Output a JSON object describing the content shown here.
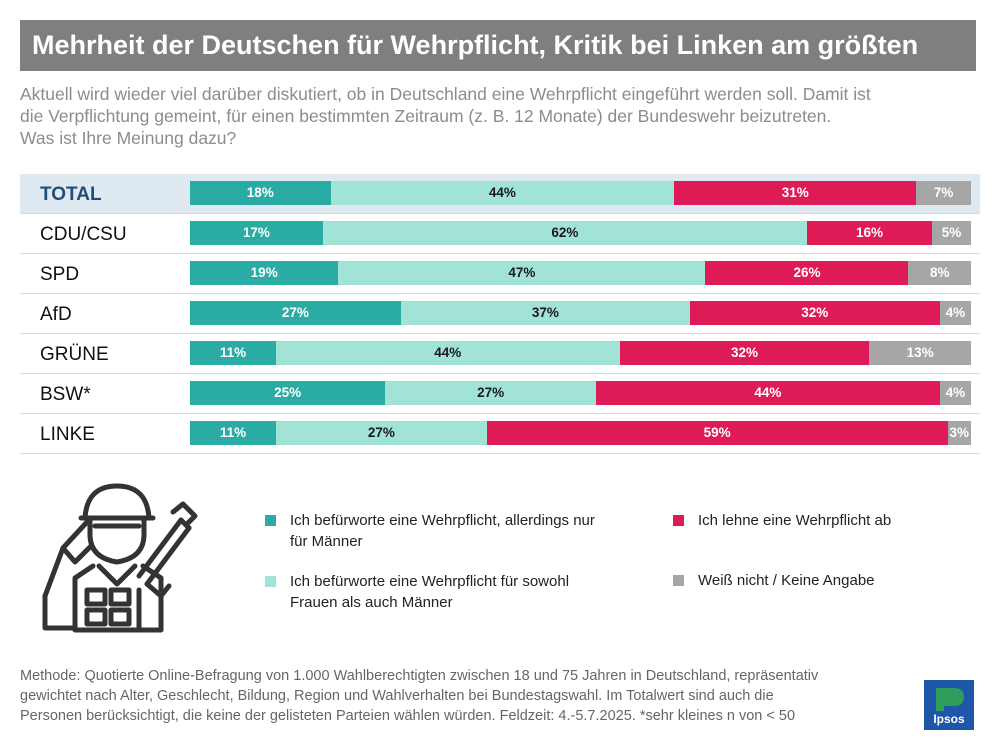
{
  "title": "Mehrheit der Deutschen für Wehrpflicht, Kritik bei Linken am größten",
  "subtitle_lines": [
    "Aktuell wird wieder viel darüber diskutiert, ob in Deutschland eine Wehrpflicht eingeführt werden soll. Damit ist",
    "die Verpflichtung gemeint, für einen bestimmten Zeitraum (z. B. 12 Monate) der Bundeswehr beizutreten.",
    "Was ist Ihre Meinung dazu?"
  ],
  "colors": {
    "men_only": "#2aaca4",
    "both": "#a1e3d7",
    "reject": "#df1b57",
    "unknown": "#a6a6a6",
    "title_bg": "#7f7f7f",
    "highlight_bg": "#dfe9f1",
    "logo_bg": "#1f56a8"
  },
  "chart_data": {
    "type": "bar",
    "orientation": "horizontal",
    "stacked": true,
    "percent_stacked": true,
    "categories": [
      "TOTAL",
      "CDU/CSU",
      "SPD",
      "AfD",
      "GRÜNE",
      "BSW*",
      "LINKE"
    ],
    "series": [
      {
        "name": "Ich befürworte eine Wehrpflicht, allerdings nur für Männer",
        "values": [
          18,
          17,
          19,
          27,
          11,
          25,
          11
        ]
      },
      {
        "name": "Ich befürworte eine Wehrpflicht für sowohl Frauen als auch Männer",
        "values": [
          44,
          62,
          47,
          37,
          44,
          27,
          27
        ]
      },
      {
        "name": "Ich lehne eine Wehrpflicht ab",
        "values": [
          31,
          16,
          26,
          32,
          32,
          44,
          59
        ]
      },
      {
        "name": "Weiß nicht / Keine Angabe",
        "values": [
          7,
          5,
          8,
          4,
          13,
          4,
          3
        ]
      }
    ],
    "unit": "%",
    "legend_position": "bottom"
  },
  "legend": [
    {
      "lines": [
        "Ich befürworte eine Wehrpflicht, allerdings nur",
        "für Männer"
      ]
    },
    {
      "lines": [
        "Ich befürworte eine Wehrpflicht für sowohl",
        "Frauen als auch Männer"
      ]
    },
    {
      "lines": [
        "Ich lehne eine Wehrpflicht ab"
      ]
    },
    {
      "lines": [
        "Weiß nicht / Keine Angabe"
      ]
    }
  ],
  "footer_lines": [
    "Methode: Quotierte Online-Befragung von 1.000 Wahlberechtigten zwischen 18 und 75 Jahren in Deutschland, repräsentativ",
    "gewichtet nach Alter, Geschlecht, Bildung, Region und Wahlverhalten bei Bundestagswahl. Im Totalwert sind auch die",
    "Personen berücksichtigt, die keine der gelisteten Parteien wählen würden. Feldzeit: 4.-5.7.2025. *sehr kleines n von < 50"
  ],
  "logo": {
    "text": "Ipsos"
  },
  "icons": {
    "illustration": "saluting-soldier-icon"
  }
}
